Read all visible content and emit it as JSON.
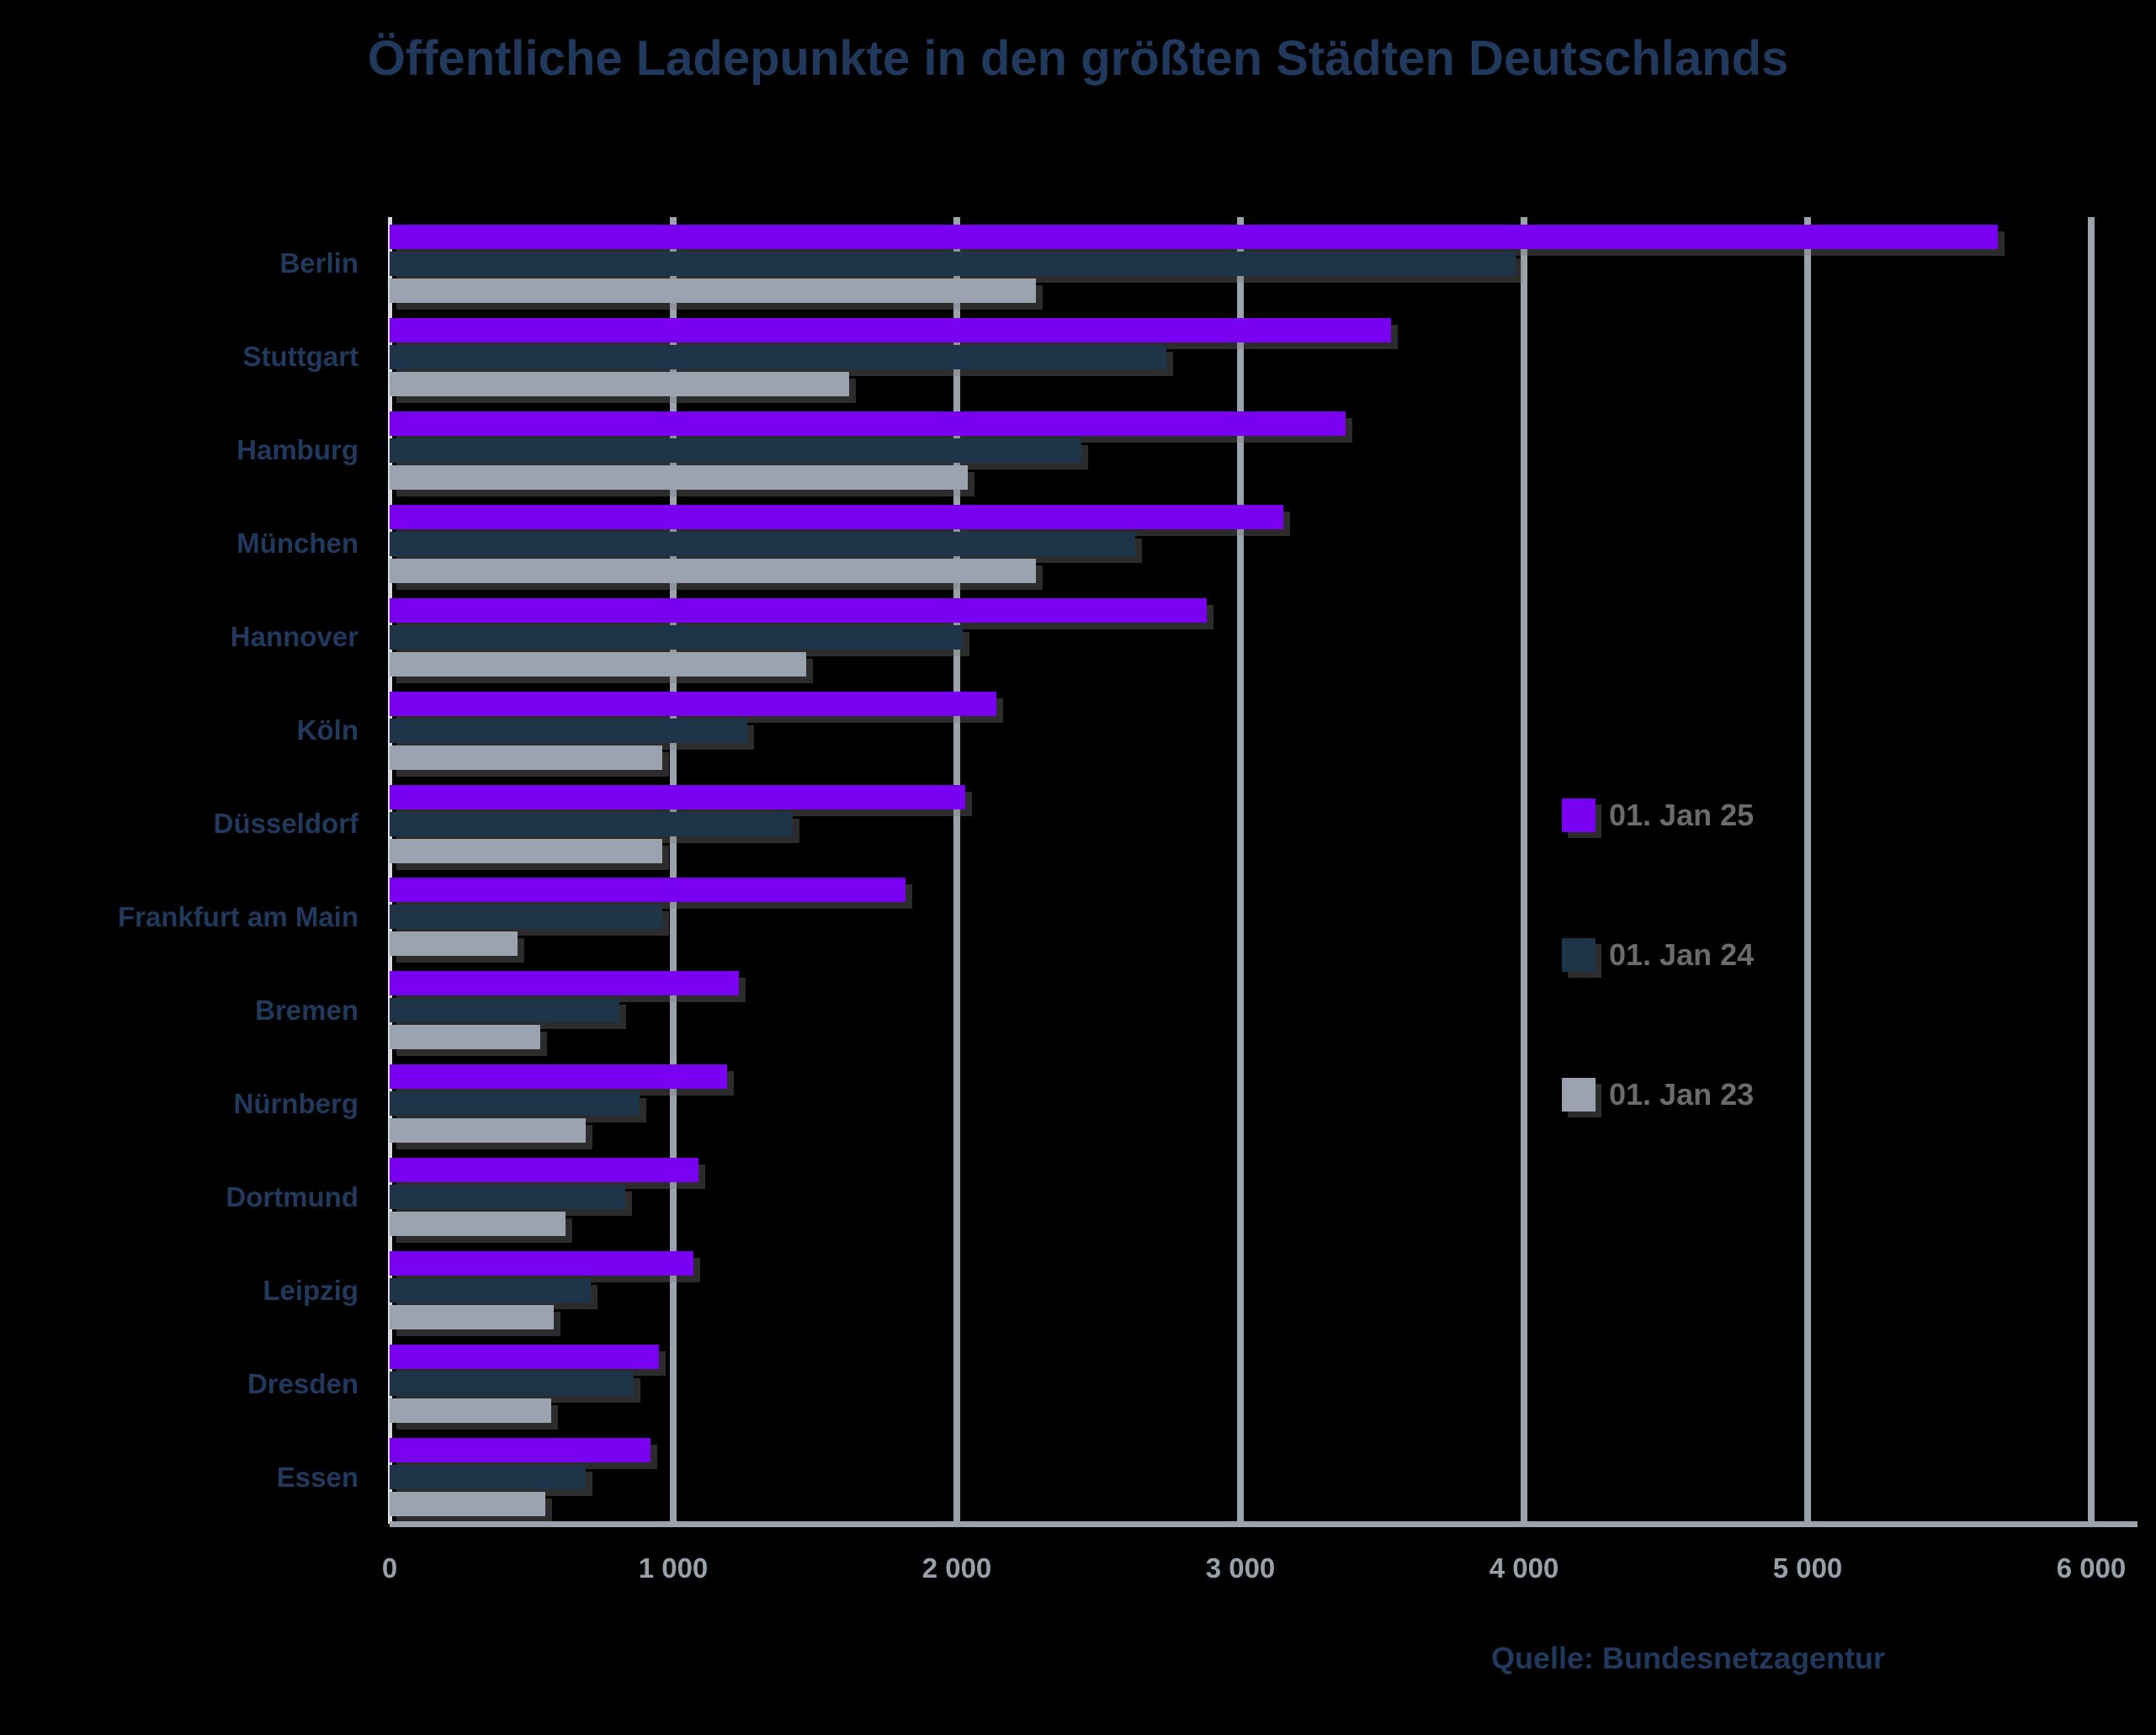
{
  "title": "Öffentliche Ladepunkte in den größten Städten Deutschlands",
  "source": "Quelle: Bundesnetzagentur",
  "colors": {
    "background": "#000000",
    "title_text": "#20395C",
    "category_text": "#20395C",
    "tick_text": "#98A0AA",
    "legend_text": "#6B6B6B",
    "gridline": "#9AA2AC",
    "axis_line": "#D6D9DD",
    "series_jan25": "#7A00F2",
    "series_jan24": "#1E3449",
    "series_jan23": "#9AA3AF"
  },
  "chart_data": {
    "type": "bar",
    "orientation": "horizontal",
    "title": "Öffentliche Ladepunkte in den größten Städten Deutschlands",
    "xlabel": "",
    "ylabel": "",
    "xlim": [
      0,
      6000
    ],
    "grid": true,
    "legend_position": "right-middle",
    "categories": [
      "Berlin",
      "Stuttgart",
      "Hamburg",
      "München",
      "Hannover",
      "Köln",
      "Düsseldorf",
      "Frankfurt am Main",
      "Bremen",
      "Nürnberg",
      "Dortmund",
      "Leipzig",
      "Dresden",
      "Essen"
    ],
    "series": [
      {
        "name": "01. Jan 25",
        "color": "#7A00F2",
        "values": [
          5670,
          3530,
          3370,
          3150,
          2880,
          2140,
          2030,
          1820,
          1230,
          1190,
          1090,
          1070,
          950,
          920
        ]
      },
      {
        "name": "01. Jan 24",
        "color": "#1E3449",
        "values": [
          3970,
          2740,
          2440,
          2630,
          2020,
          1260,
          1420,
          960,
          810,
          880,
          830,
          710,
          860,
          690
        ]
      },
      {
        "name": "01. Jan 23",
        "color": "#9AA3AF",
        "values": [
          2280,
          1620,
          2040,
          2280,
          1470,
          960,
          960,
          450,
          530,
          690,
          620,
          580,
          570,
          550
        ]
      }
    ],
    "x_ticks": [
      0,
      1000,
      2000,
      3000,
      4000,
      5000,
      6000
    ],
    "x_tick_labels": [
      "0",
      "1 000",
      "2 000",
      "3 000",
      "4 000",
      "5 000",
      "6 000"
    ]
  },
  "legend": {
    "entries": [
      {
        "label": "01. Jan 25"
      },
      {
        "label": "01. Jan 24"
      },
      {
        "label": "01. Jan 23"
      }
    ]
  }
}
